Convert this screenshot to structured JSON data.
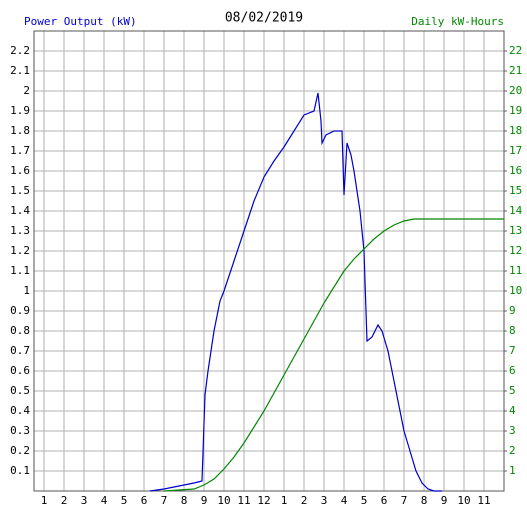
{
  "chart_data": {
    "type": "line",
    "title": "08/02/2019",
    "ylabel": "Power Output (kW)",
    "y2label": "Daily kW-Hours",
    "xlim": [
      0.5,
      24
    ],
    "xticks": [
      1,
      2,
      3,
      4,
      5,
      6,
      7,
      8,
      9,
      10,
      11,
      12,
      {
        "value": 13,
        "label": "1"
      },
      {
        "value": 14,
        "label": "2"
      },
      {
        "value": 15,
        "label": "3"
      },
      {
        "value": 16,
        "label": "4"
      },
      {
        "value": 17,
        "label": "5"
      },
      {
        "value": 18,
        "label": "6"
      },
      {
        "value": 19,
        "label": "7"
      },
      {
        "value": 20,
        "label": "8"
      },
      {
        "value": 21,
        "label": "9"
      },
      {
        "value": 22,
        "label": "10"
      },
      {
        "value": 23,
        "label": "11"
      }
    ],
    "ylim": [
      0,
      2.3
    ],
    "yticks": [
      0.1,
      0.2,
      0.3,
      0.4,
      0.5,
      0.6,
      0.7,
      0.8,
      0.9,
      1.0,
      1.1,
      1.2,
      1.3,
      1.4,
      1.5,
      1.6,
      1.7,
      1.8,
      1.9,
      2.0,
      2.1,
      2.2
    ],
    "y2lim": [
      0,
      23
    ],
    "y2ticks": [
      1,
      2,
      3,
      4,
      5,
      6,
      7,
      8,
      9,
      10,
      11,
      12,
      13,
      14,
      15,
      16,
      17,
      18,
      19,
      20,
      21,
      22
    ],
    "grid": true,
    "series": [
      {
        "color": "#0000cc",
        "x": [
          6.3,
          7.0,
          7.5,
          8.0,
          8.5,
          8.9,
          9.05,
          9.2,
          9.5,
          9.8,
          10.0,
          10.5,
          11.0,
          11.5,
          12.0,
          12.5,
          13.0,
          13.5,
          14.0,
          14.5,
          14.7,
          14.85,
          14.9,
          15.1,
          15.5,
          15.9,
          16.0,
          16.15,
          16.35,
          16.5,
          16.8,
          17.0,
          17.15,
          17.4,
          17.7,
          17.9,
          18.2,
          18.5,
          18.8,
          19.0,
          19.3,
          19.6,
          19.9,
          20.2,
          20.5,
          20.9
        ],
        "values": [
          0,
          0.01,
          0.02,
          0.03,
          0.04,
          0.05,
          0.48,
          0.6,
          0.8,
          0.95,
          1.0,
          1.15,
          1.3,
          1.45,
          1.57,
          1.65,
          1.72,
          1.8,
          1.88,
          1.9,
          1.99,
          1.85,
          1.74,
          1.78,
          1.8,
          1.8,
          1.48,
          1.74,
          1.68,
          1.6,
          1.4,
          1.2,
          0.75,
          0.77,
          0.83,
          0.8,
          0.7,
          0.55,
          0.4,
          0.3,
          0.2,
          0.1,
          0.04,
          0.01,
          0,
          0
        ]
      },
      {
        "color": "#008800",
        "axis": "y2",
        "x": [
          7.0,
          8.5,
          9.0,
          9.5,
          10.0,
          10.5,
          11.0,
          11.5,
          12.0,
          12.5,
          13.0,
          13.5,
          14.0,
          14.5,
          15.0,
          15.5,
          16.0,
          16.5,
          17.0,
          17.5,
          18.0,
          18.5,
          19.0,
          19.5,
          20.0,
          24.0
        ],
        "values": [
          0,
          0.1,
          0.3,
          0.6,
          1.1,
          1.7,
          2.4,
          3.2,
          4.0,
          4.9,
          5.8,
          6.7,
          7.6,
          8.5,
          9.4,
          10.2,
          11.0,
          11.6,
          12.1,
          12.6,
          13.0,
          13.3,
          13.5,
          13.6,
          13.6,
          13.6
        ]
      }
    ]
  }
}
